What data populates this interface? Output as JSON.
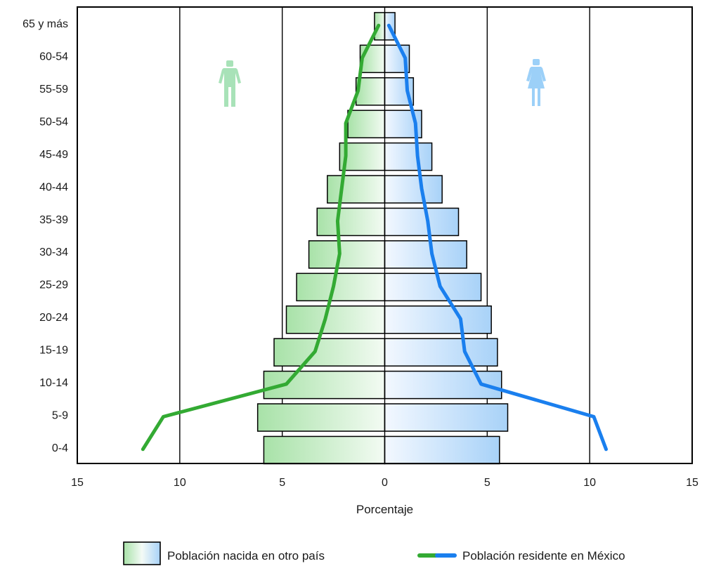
{
  "chart_data": {
    "type": "bar",
    "subtype": "population-pyramid",
    "xlabel": "Porcentaje",
    "xlim": [
      -15,
      15
    ],
    "xticks": [
      -15,
      -10,
      -5,
      0,
      5,
      10,
      15
    ],
    "xtick_labels": [
      "15",
      "10",
      "5",
      "0",
      "5",
      "10",
      "15"
    ],
    "grid": "vertical lines at multiples of 5",
    "categories": [
      "65 y más",
      "60-54",
      "55-59",
      "50-54",
      "45-49",
      "40-44",
      "35-39",
      "30-34",
      "25-29",
      "20-24",
      "15-19",
      "10-14",
      "5-9",
      "0-4"
    ],
    "series": [
      {
        "name": "Población nacida en otro país",
        "kind": "bars",
        "men": [
          0.5,
          1.2,
          1.4,
          1.8,
          2.2,
          2.8,
          3.3,
          3.7,
          4.3,
          4.8,
          5.4,
          5.9,
          6.2,
          5.9
        ],
        "women": [
          0.5,
          1.2,
          1.4,
          1.8,
          2.3,
          2.8,
          3.6,
          4.0,
          4.7,
          5.2,
          5.5,
          5.7,
          6.0,
          5.6
        ],
        "fill_men": "#a8e2a8",
        "fill_women": "#a8d2f8"
      },
      {
        "name": "Población residente en México",
        "kind": "line",
        "men": [
          0.3,
          1.1,
          1.3,
          1.9,
          1.9,
          2.1,
          2.3,
          2.2,
          2.5,
          2.9,
          3.4,
          4.8,
          10.8,
          11.8
        ],
        "women": [
          0.2,
          1.0,
          1.1,
          1.5,
          1.6,
          1.8,
          2.1,
          2.3,
          2.7,
          3.7,
          3.9,
          4.7,
          10.2,
          10.8
        ],
        "color_men": "#33aa33",
        "color_women": "#1a7fee"
      }
    ],
    "legend_position": "bottom",
    "icons": {
      "men": "man-icon",
      "women": "woman-icon"
    }
  }
}
